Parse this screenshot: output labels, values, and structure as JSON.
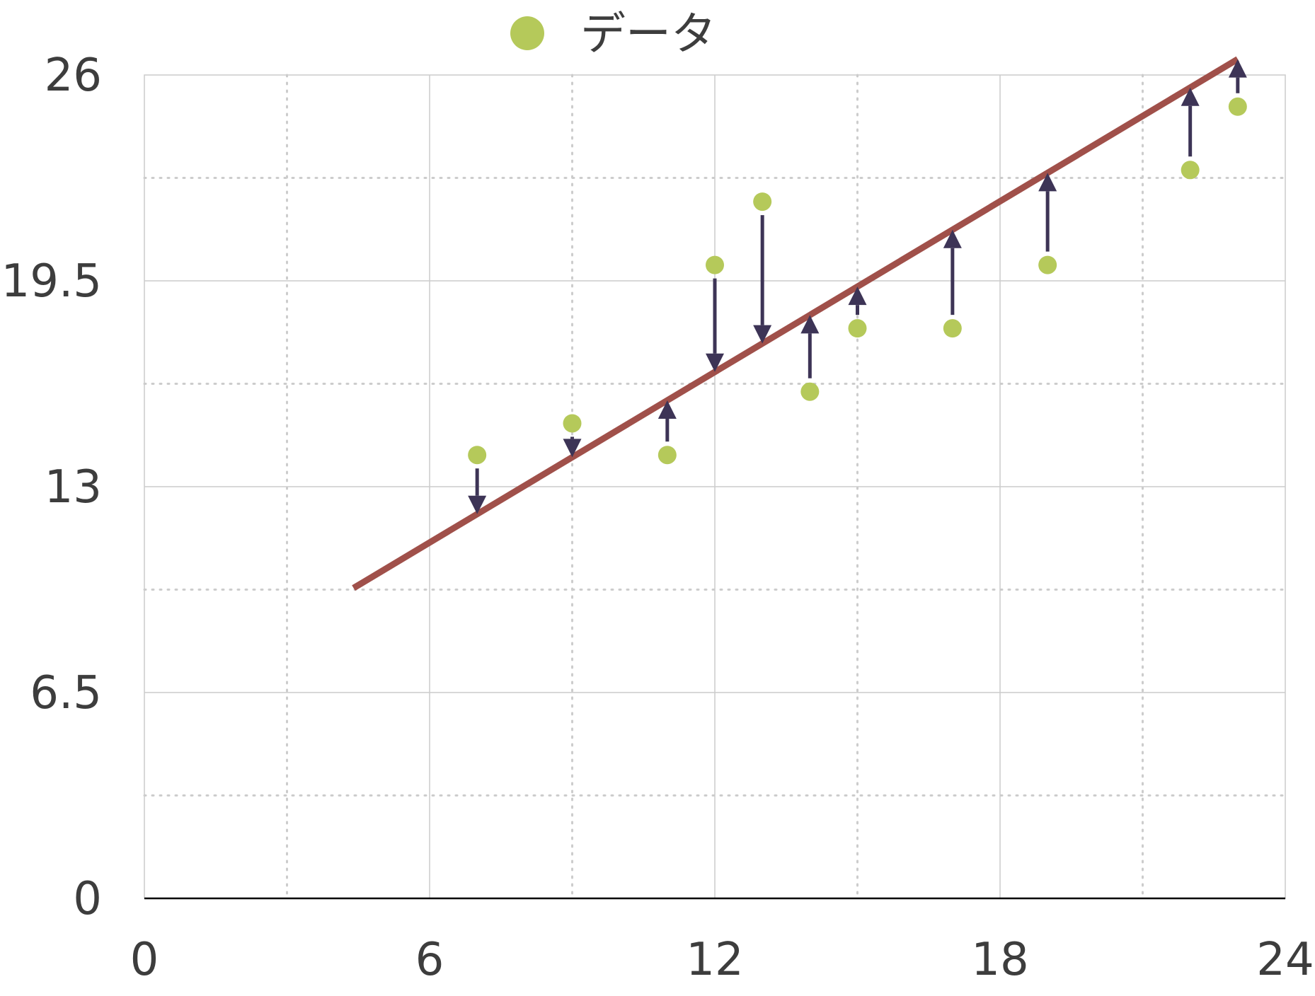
{
  "chart_data": {
    "type": "scatter",
    "legend": {
      "position": "top-center",
      "label": "データ"
    },
    "xlim": [
      0,
      24
    ],
    "ylim": [
      0,
      26
    ],
    "x_ticks": [
      0,
      6,
      12,
      18,
      24
    ],
    "x_tick_labels": [
      "0",
      "6",
      "12",
      "18",
      "24"
    ],
    "y_ticks": [
      0,
      6.5,
      13,
      19.5,
      26
    ],
    "y_tick_labels": [
      "0",
      "6.5",
      "13",
      "19.5",
      "26"
    ],
    "grid": {
      "major": true,
      "minor_dotted": true
    },
    "series": [
      {
        "name": "データ",
        "points": [
          {
            "x": 7,
            "y": 14
          },
          {
            "x": 9,
            "y": 15
          },
          {
            "x": 11,
            "y": 14
          },
          {
            "x": 12,
            "y": 20
          },
          {
            "x": 13,
            "y": 22
          },
          {
            "x": 14,
            "y": 16
          },
          {
            "x": 15,
            "y": 18
          },
          {
            "x": 17,
            "y": 18
          },
          {
            "x": 19,
            "y": 20
          },
          {
            "x": 22,
            "y": 23
          },
          {
            "x": 23,
            "y": 25
          }
        ]
      }
    ],
    "fit_line": {
      "x": [
        4.4,
        23
      ],
      "y": [
        9.8,
        26.5
      ]
    },
    "colors": {
      "points": "#b5c95a",
      "fit_line": "#a0504a",
      "arrows": "#3d3456",
      "grid": "#cccccc",
      "axis": "#000000",
      "text": "#3d3d3d"
    }
  }
}
